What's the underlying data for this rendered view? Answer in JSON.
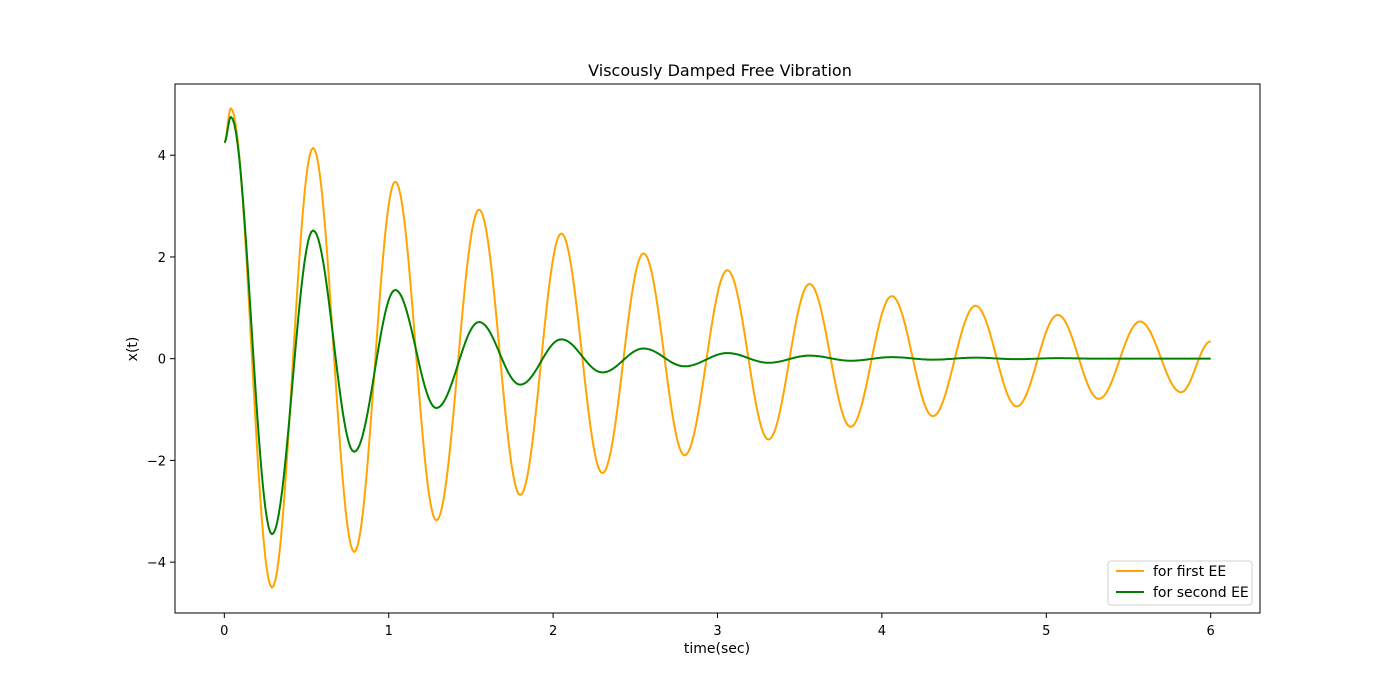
{
  "chart_data": {
    "type": "line",
    "title": "Viscously Damped Free Vibration",
    "xlabel": "time(sec)",
    "ylabel": "x(t)",
    "xlim": [
      -0.3,
      6.3
    ],
    "ylim": [
      -5.0,
      5.4
    ],
    "grid": false,
    "legend_position": "lower-right",
    "x_ticks": [
      0,
      1,
      2,
      3,
      4,
      5,
      6
    ],
    "x_tick_labels": [
      "0",
      "1",
      "2",
      "3",
      "4",
      "5",
      "6"
    ],
    "y_ticks": [
      -4,
      -2,
      0,
      2,
      4
    ],
    "y_tick_labels": [
      "−4",
      "−2",
      "0",
      "2",
      "4"
    ],
    "series": [
      {
        "name": "for first EE",
        "color": "#ffa500",
        "x": [
          0,
          0.04,
          0.29,
          0.54,
          0.79,
          1.04,
          1.29,
          1.55,
          1.8,
          2.05,
          2.3,
          2.55,
          2.8,
          3.06,
          3.31,
          3.56,
          3.81,
          4.06,
          4.31,
          4.57,
          4.82,
          5.07,
          5.32,
          5.57,
          5.82,
          6.0
        ],
        "y": [
          4.25,
          4.92,
          -4.5,
          4.14,
          -3.8,
          3.48,
          -3.18,
          2.93,
          -2.68,
          2.46,
          -2.25,
          2.07,
          -1.9,
          1.74,
          -1.59,
          1.47,
          -1.34,
          1.23,
          -1.13,
          1.04,
          -0.94,
          0.86,
          -0.79,
          0.73,
          -0.66,
          0.34
        ]
      },
      {
        "name": "for second EE",
        "color": "#008000",
        "x": [
          0,
          0.04,
          0.29,
          0.54,
          0.79,
          1.04,
          1.29,
          1.55,
          1.8,
          2.05,
          2.3,
          2.55,
          2.8,
          3.06,
          3.31,
          3.56,
          3.81,
          4.06,
          4.31,
          4.57,
          4.82,
          5.07,
          5.32,
          5.57,
          5.82,
          6.0
        ],
        "y": [
          4.25,
          4.75,
          -3.45,
          2.52,
          -1.83,
          1.35,
          -0.97,
          0.72,
          -0.51,
          0.38,
          -0.27,
          0.2,
          -0.15,
          0.11,
          -0.08,
          0.06,
          -0.04,
          0.03,
          -0.02,
          0.02,
          -0.01,
          0.01,
          0.0,
          0.0,
          0.0,
          0.0
        ]
      }
    ]
  }
}
